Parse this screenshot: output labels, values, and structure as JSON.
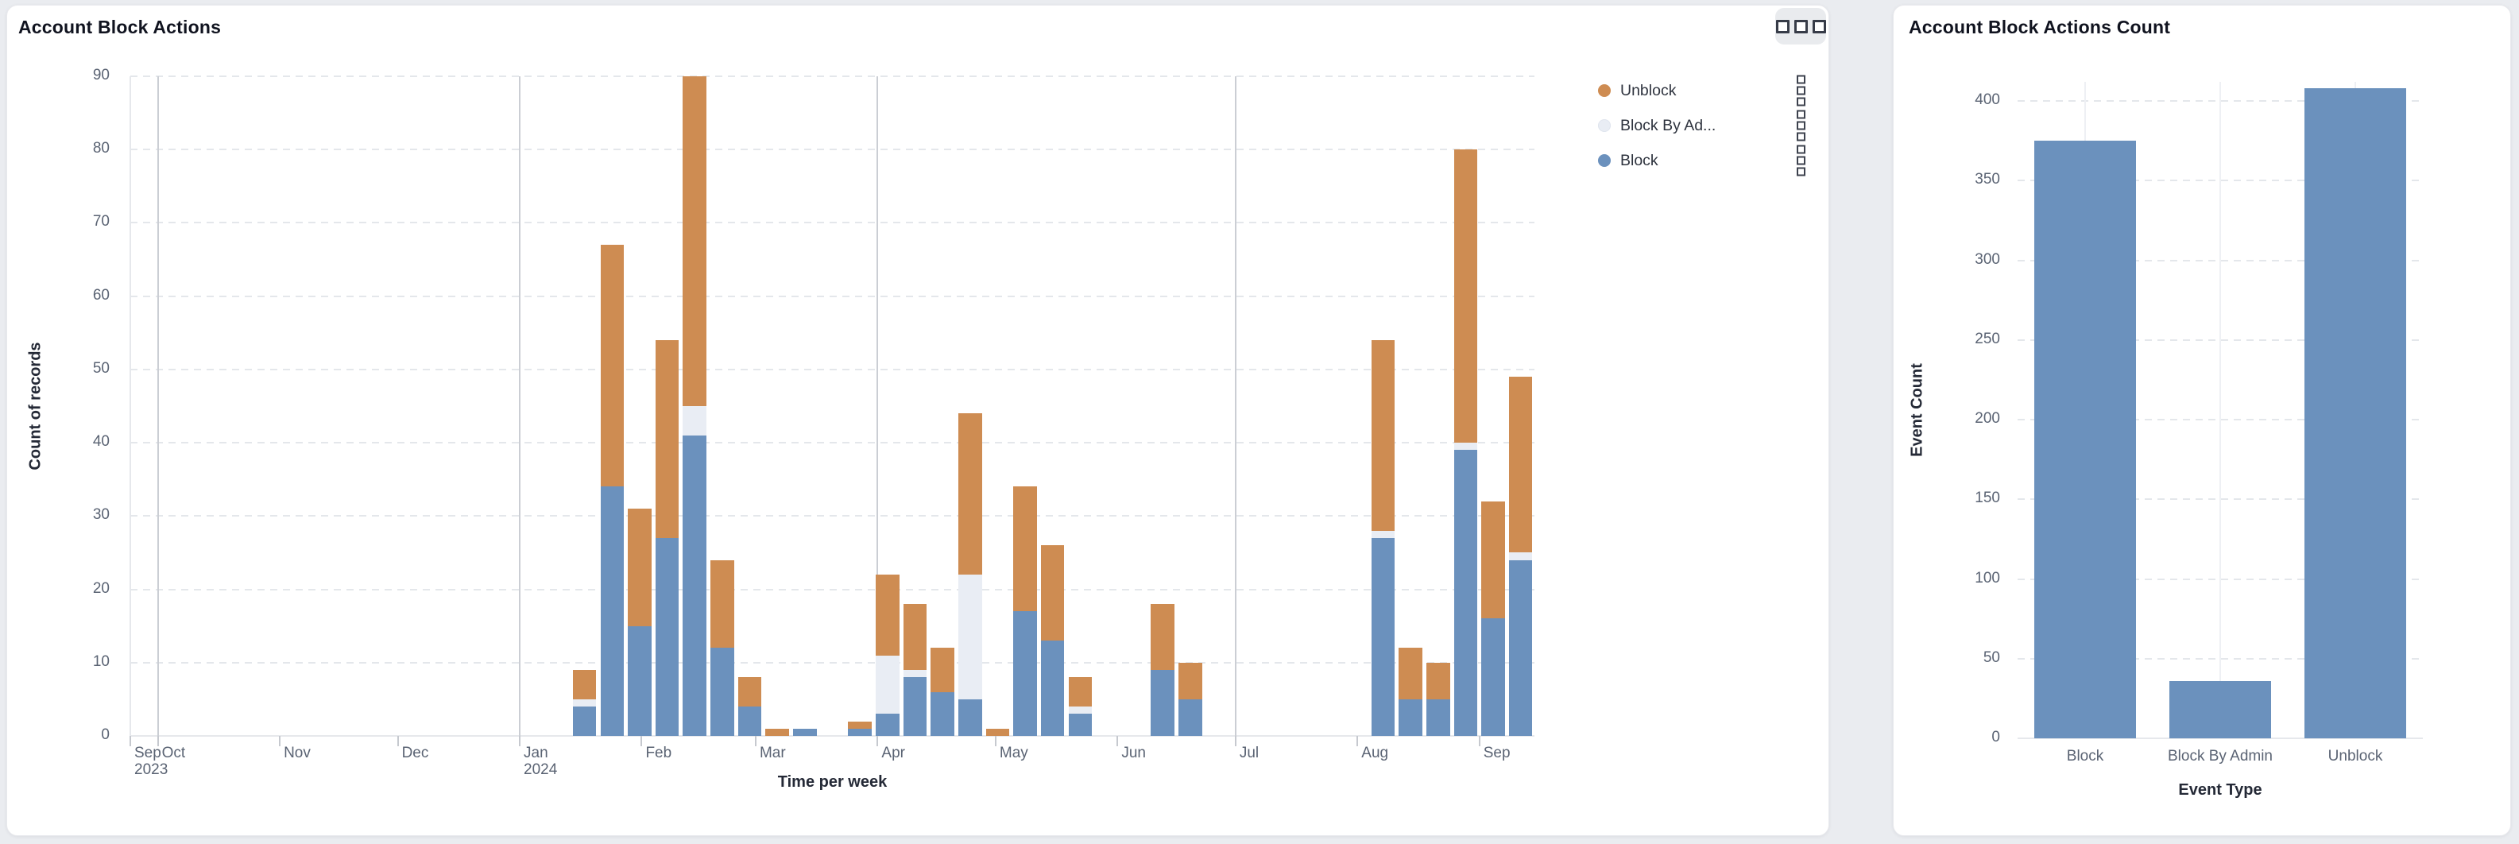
{
  "page": {
    "background": "#eaecf0"
  },
  "left_card": {
    "title": "Account Block Actions",
    "menu_icon": "three-squares-icon",
    "legend": [
      {
        "label": "Unblock",
        "color": "#ce8c52"
      },
      {
        "label": "Block By Ad...",
        "color": "#e9edf4"
      },
      {
        "label": "Block",
        "color": "#6b91bd"
      }
    ]
  },
  "right_card": {
    "title": "Account Block Actions Count"
  },
  "chart_data": [
    {
      "type": "bar",
      "variant": "stacked-weekly-time-series",
      "title": "Account Block Actions",
      "xlabel": "Time per week",
      "ylabel": "Count of records",
      "ylim": [
        0,
        90
      ],
      "yticks": [
        0,
        10,
        20,
        30,
        40,
        50,
        60,
        70,
        80,
        90
      ],
      "grid": "dashed-horizontal",
      "legend_position": "top-right",
      "x_domain": [
        "2023-09-24",
        "2024-09-15"
      ],
      "month_ticks": [
        {
          "date": "2023-09-24",
          "label": "Sep",
          "sub": "2023"
        },
        {
          "date": "2023-10-01",
          "label": "Oct"
        },
        {
          "date": "2023-11-01",
          "label": "Nov"
        },
        {
          "date": "2023-12-01",
          "label": "Dec"
        },
        {
          "date": "2024-01-01",
          "label": "Jan",
          "sub": "2024"
        },
        {
          "date": "2024-02-01",
          "label": "Feb"
        },
        {
          "date": "2024-03-01",
          "label": "Mar"
        },
        {
          "date": "2024-04-01",
          "label": "Apr"
        },
        {
          "date": "2024-05-01",
          "label": "May"
        },
        {
          "date": "2024-06-01",
          "label": "Jun"
        },
        {
          "date": "2024-07-01",
          "label": "Jul"
        },
        {
          "date": "2024-08-01",
          "label": "Aug"
        },
        {
          "date": "2024-09-01",
          "label": "Sep"
        }
      ],
      "quarter_lines": [
        "2023-10-01",
        "2024-01-01",
        "2024-04-01",
        "2024-07-01"
      ],
      "stack_order_bottom_to_top": [
        "Block",
        "Block By Admin",
        "Unblock"
      ],
      "series_colors": {
        "Block": "#6b91bd",
        "Block By Admin": "#e9edf4",
        "Unblock": "#ce8c52"
      },
      "weeks": [
        {
          "week_start": "2024-01-14",
          "Block": 4,
          "Block By Admin": 1,
          "Unblock": 4
        },
        {
          "week_start": "2024-01-21",
          "Block": 34,
          "Block By Admin": 0,
          "Unblock": 33
        },
        {
          "week_start": "2024-01-28",
          "Block": 15,
          "Block By Admin": 0,
          "Unblock": 16
        },
        {
          "week_start": "2024-02-04",
          "Block": 27,
          "Block By Admin": 0,
          "Unblock": 27
        },
        {
          "week_start": "2024-02-11",
          "Block": 41,
          "Block By Admin": 4,
          "Unblock": 45
        },
        {
          "week_start": "2024-02-18",
          "Block": 12,
          "Block By Admin": 0,
          "Unblock": 12
        },
        {
          "week_start": "2024-02-25",
          "Block": 4,
          "Block By Admin": 0,
          "Unblock": 4
        },
        {
          "week_start": "2024-03-03",
          "Block": 0,
          "Block By Admin": 0,
          "Unblock": 1
        },
        {
          "week_start": "2024-03-10",
          "Block": 1,
          "Block By Admin": 0,
          "Unblock": 0
        },
        {
          "week_start": "2024-03-24",
          "Block": 1,
          "Block By Admin": 0,
          "Unblock": 1
        },
        {
          "week_start": "2024-03-31",
          "Block": 3,
          "Block By Admin": 8,
          "Unblock": 11
        },
        {
          "week_start": "2024-04-07",
          "Block": 8,
          "Block By Admin": 1,
          "Unblock": 9
        },
        {
          "week_start": "2024-04-14",
          "Block": 6,
          "Block By Admin": 0,
          "Unblock": 6
        },
        {
          "week_start": "2024-04-21",
          "Block": 5,
          "Block By Admin": 17,
          "Unblock": 22
        },
        {
          "week_start": "2024-04-28",
          "Block": 0,
          "Block By Admin": 0,
          "Unblock": 1
        },
        {
          "week_start": "2024-05-05",
          "Block": 17,
          "Block By Admin": 0,
          "Unblock": 17
        },
        {
          "week_start": "2024-05-12",
          "Block": 13,
          "Block By Admin": 0,
          "Unblock": 13
        },
        {
          "week_start": "2024-05-19",
          "Block": 3,
          "Block By Admin": 1,
          "Unblock": 4
        },
        {
          "week_start": "2024-06-09",
          "Block": 9,
          "Block By Admin": 0,
          "Unblock": 9
        },
        {
          "week_start": "2024-06-16",
          "Block": 5,
          "Block By Admin": 0,
          "Unblock": 5
        },
        {
          "week_start": "2024-08-04",
          "Block": 27,
          "Block By Admin": 1,
          "Unblock": 26
        },
        {
          "week_start": "2024-08-11",
          "Block": 5,
          "Block By Admin": 0,
          "Unblock": 7
        },
        {
          "week_start": "2024-08-18",
          "Block": 5,
          "Block By Admin": 0,
          "Unblock": 5
        },
        {
          "week_start": "2024-08-25",
          "Block": 39,
          "Block By Admin": 1,
          "Unblock": 40
        },
        {
          "week_start": "2024-09-01",
          "Block": 16,
          "Block By Admin": 0,
          "Unblock": 16
        },
        {
          "week_start": "2024-09-08",
          "Block": 24,
          "Block By Admin": 1,
          "Unblock": 24
        }
      ]
    },
    {
      "type": "bar",
      "title": "Account Block Actions Count",
      "xlabel": "Event Type",
      "ylabel": "Event Count",
      "categories": [
        "Block",
        "Block By Admin",
        "Unblock"
      ],
      "values": [
        375,
        36,
        408
      ],
      "bar_color": "#6b91bd",
      "ylim": [
        0,
        412
      ],
      "yticks": [
        0,
        50,
        100,
        150,
        200,
        250,
        300,
        350,
        400
      ],
      "grid": "dashed-horizontal-plus-faint-category-verticals"
    }
  ]
}
